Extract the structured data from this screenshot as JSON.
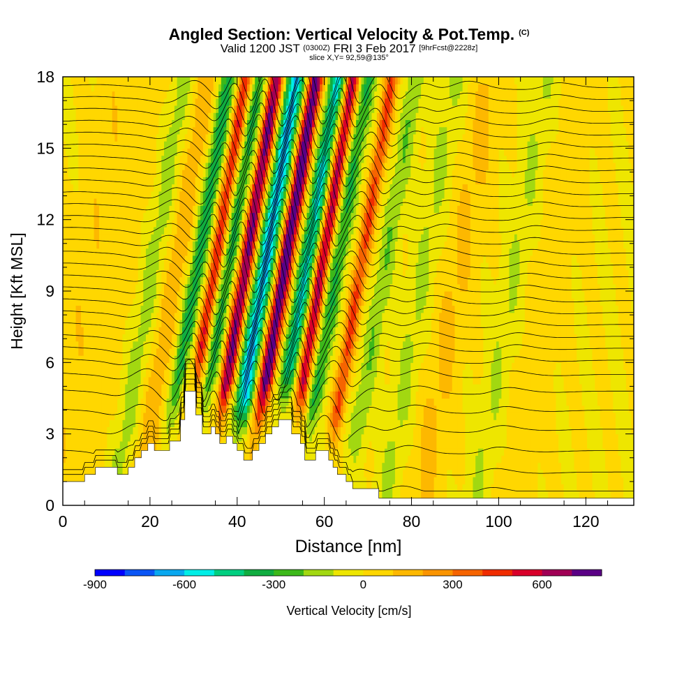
{
  "header": {
    "title": "Angled Section: Vertical Velocity & Pot.Temp.",
    "title_unit": "(C)",
    "valid_prefix": "Valid 1200 JST",
    "valid_utc": "(0300Z)",
    "valid_date": "FRI 3 Feb 2017",
    "forecast": "[9hrFcst@2228z]",
    "slice": "slice X,Y= 92,59@135°"
  },
  "chart_data": {
    "type": "heatmap",
    "title": "Angled Section: Vertical Velocity & Pot.Temp.",
    "xlabel": "Distance [nm]",
    "ylabel": "Height [Kft MSL]",
    "xlim": [
      0,
      131
    ],
    "ylim": [
      0,
      18
    ],
    "xticks": [
      0,
      20,
      40,
      60,
      80,
      100,
      120
    ],
    "xtick_labels": [
      "0",
      "20",
      "40",
      "60",
      "80",
      "100",
      "120"
    ],
    "yticks": [
      0,
      3,
      6,
      9,
      12,
      15,
      18
    ],
    "ytick_labels": [
      "0",
      "3",
      "6",
      "9",
      "12",
      "15",
      "18"
    ],
    "colorbar": {
      "label": "Vertical Velocity [cm/s]",
      "min": -900,
      "max": 800,
      "step": 100,
      "tick_values": [
        -900,
        -600,
        -300,
        0,
        300,
        600
      ],
      "tick_labels": [
        "-900",
        "-600",
        "-300",
        "0",
        "300",
        "600"
      ],
      "colors": [
        "#0000ff",
        "#0a55f5",
        "#09a8ef",
        "#00eee6",
        "#00cf80",
        "#10ad40",
        "#3cb81a",
        "#a2d811",
        "#eee600",
        "#ffd700",
        "#fdb800",
        "#fa9400",
        "#f66400",
        "#f02c00",
        "#d9002a",
        "#a00055",
        "#5a0085"
      ]
    },
    "velocity_bands": [
      {
        "x": 5,
        "w": 5,
        "v": 80
      },
      {
        "x": 13,
        "w": 4,
        "v": 60
      },
      {
        "x": 20,
        "w": 3,
        "v": -150
      },
      {
        "x": 25,
        "w": 3,
        "v": 180
      },
      {
        "x": 30,
        "w": 2,
        "v": -370
      },
      {
        "x": 34,
        "w": 1.6,
        "v": 520
      },
      {
        "x": 37,
        "w": 2,
        "v": -330
      },
      {
        "x": 41,
        "w": 1.7,
        "v": 720
      },
      {
        "x": 45.5,
        "w": 2.2,
        "v": -640
      },
      {
        "x": 50,
        "w": 1.8,
        "v": 800
      },
      {
        "x": 55,
        "w": 2,
        "v": -520
      },
      {
        "x": 58.5,
        "w": 1.6,
        "v": 640
      },
      {
        "x": 62,
        "w": 2,
        "v": -310
      },
      {
        "x": 67.5,
        "w": 1.6,
        "v": 420
      },
      {
        "x": 73,
        "w": 2.2,
        "v": -190
      },
      {
        "x": 82,
        "w": 3,
        "v": -120
      },
      {
        "x": 90,
        "w": 4,
        "v": 120
      },
      {
        "x": 103,
        "w": 3,
        "v": -110
      },
      {
        "x": 111,
        "w": 5,
        "v": 60
      }
    ],
    "terrain_kft": [
      [
        0,
        1
      ],
      [
        5,
        1
      ],
      [
        5,
        1.3
      ],
      [
        7.5,
        1.3
      ],
      [
        7.5,
        1.6
      ],
      [
        12.5,
        1.6
      ],
      [
        12.5,
        1.3
      ],
      [
        15,
        1.3
      ],
      [
        15,
        1.6
      ],
      [
        16.5,
        1.6
      ],
      [
        16.5,
        2.0
      ],
      [
        18,
        2.0
      ],
      [
        18,
        2.3
      ],
      [
        19.5,
        2.3
      ],
      [
        19.5,
        2.6
      ],
      [
        21,
        2.6
      ],
      [
        21,
        2.3
      ],
      [
        24.5,
        2.3
      ],
      [
        24.5,
        2.7
      ],
      [
        27,
        2.7
      ],
      [
        27,
        3.6
      ],
      [
        28,
        3.6
      ],
      [
        28,
        4.8
      ],
      [
        30.5,
        4.8
      ],
      [
        30.5,
        3.8
      ],
      [
        32,
        3.8
      ],
      [
        32,
        3.0
      ],
      [
        34,
        3.0
      ],
      [
        34,
        3.3
      ],
      [
        35,
        3.3
      ],
      [
        35,
        3.0
      ],
      [
        36,
        3.0
      ],
      [
        36,
        2.6
      ],
      [
        37.5,
        2.6
      ],
      [
        37.5,
        2.9
      ],
      [
        39,
        2.9
      ],
      [
        39,
        2.6
      ],
      [
        40,
        2.6
      ],
      [
        40,
        2.3
      ],
      [
        41.5,
        2.3
      ],
      [
        41.5,
        1.9
      ],
      [
        43.5,
        1.9
      ],
      [
        43.5,
        2.3
      ],
      [
        45,
        2.3
      ],
      [
        45,
        2.6
      ],
      [
        46.5,
        2.6
      ],
      [
        46.5,
        3.0
      ],
      [
        48,
        3.0
      ],
      [
        48,
        3.3
      ],
      [
        49.5,
        3.3
      ],
      [
        49.5,
        3.6
      ],
      [
        52.5,
        3.6
      ],
      [
        52.5,
        3.0
      ],
      [
        54.5,
        3.0
      ],
      [
        54.5,
        2.6
      ],
      [
        55.5,
        2.6
      ],
      [
        55.5,
        1.9
      ],
      [
        58,
        1.9
      ],
      [
        58,
        2.3
      ],
      [
        61,
        2.3
      ],
      [
        61,
        1.9
      ],
      [
        62,
        1.9
      ],
      [
        62,
        1.6
      ],
      [
        63,
        1.6
      ],
      [
        63,
        1.3
      ],
      [
        65,
        1.3
      ],
      [
        65,
        1.0
      ],
      [
        66.5,
        1.0
      ],
      [
        66.5,
        0.7
      ],
      [
        72.5,
        0.7
      ],
      [
        72.5,
        0.3
      ],
      [
        131,
        0.3
      ],
      [
        131,
        0
      ]
    ],
    "theta_contours": {
      "base_heights_kft": [
        0.6,
        1.4,
        2.3,
        3.2,
        4.0,
        4.8,
        5.5,
        6.1,
        6.6,
        7.1,
        7.6,
        8.1,
        8.6,
        9.1,
        9.6,
        10.1,
        10.6,
        11.1,
        11.6,
        12.1,
        12.6,
        13.1,
        13.6,
        14.1,
        14.6,
        15.1,
        15.6,
        16.1,
        16.6,
        17.1,
        17.6
      ]
    }
  }
}
